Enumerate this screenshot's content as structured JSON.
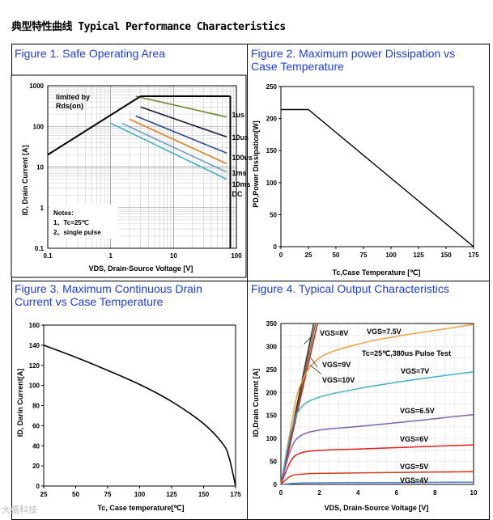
{
  "page_title": "典型特性曲线 Typical Performance Characteristics",
  "watermark": "大盛科技",
  "fig1": {
    "caption": "Figure 1. Safe Operating Area",
    "xlabel": "V<sub>DS</sub>, Drain-Source Voltage [V]",
    "xlabel_text": "VDS, Drain-Source Voltage [V]",
    "ylabel_text": "ID, Drain Current [A]",
    "xticks": [
      "0.1",
      "1",
      "10",
      "100"
    ],
    "yticks": [
      "1000",
      "100",
      "10",
      "1",
      "0.1"
    ],
    "limit_text_1": "limited by",
    "limit_text_2": "Rds(on)",
    "notes_title": "Notes:",
    "note_1": "1、Tc=25℃",
    "note_2": "2、single pulse",
    "curve_labels": [
      "1us",
      "10us",
      "100us",
      "1ms",
      "10ms",
      "DC"
    ]
  },
  "fig2": {
    "caption_1": "Figure 2. Maximum power Dissipation vs",
    "caption_2": "Case Temperature",
    "xlabel_text": "Tc,Case Temperature [℃]",
    "ylabel_text": "PD,Power Dissipation[W]",
    "xticks": [
      "0",
      "25",
      "50",
      "75",
      "100",
      "125",
      "150",
      "175"
    ],
    "yticks": [
      "0",
      "50",
      "100",
      "150",
      "200",
      "250"
    ]
  },
  "fig3": {
    "caption_1": "Figure 3. Maximum Continuous Drain",
    "caption_2": "Current vs Case Temperature",
    "xlabel_text": "Tc, Case temperature[℃]",
    "ylabel_text": "ID, Darin Current[A]",
    "xticks": [
      "25",
      "50",
      "75",
      "100",
      "125",
      "150",
      "175"
    ],
    "yticks": [
      "0",
      "20",
      "40",
      "60",
      "80",
      "100",
      "120",
      "140",
      "160"
    ]
  },
  "fig4": {
    "caption": "Figure 4. Typical Output Characteristics",
    "xlabel_text": "VDS, Drain-Source Voltage [V]",
    "ylabel_text": "ID,Drain Current [A]",
    "xticks": [
      "0",
      "2",
      "4",
      "6",
      "8",
      "10"
    ],
    "yticks": [
      "0",
      "50",
      "100",
      "150",
      "200",
      "250",
      "300",
      "350"
    ],
    "condition": "Tc=25℃,380us  Pulse Test",
    "curve_labels": [
      "VGS=8V",
      "VGS=7.5V",
      "VGS=9V",
      "VGS=10V",
      "VGS=7V",
      "VGS=6.5V",
      "VGS=6V",
      "VGS=5V",
      "VGS=4V"
    ]
  },
  "chart_data": [
    {
      "type": "line",
      "title": "Figure 1. Safe Operating Area",
      "xlabel": "VDS, Drain-Source Voltage [V]",
      "ylabel": "ID, Drain Current [A]",
      "xscale": "log",
      "yscale": "log",
      "xlim": [
        0.1,
        100
      ],
      "ylim": [
        0.1,
        1000
      ],
      "series": [
        {
          "name": "Rds(on) limit",
          "x": [
            0.1,
            3
          ],
          "y": [
            20,
            550
          ]
        },
        {
          "name": "1us",
          "x": [
            2.5,
            70
          ],
          "y": [
            550,
            170
          ]
        },
        {
          "name": "10us",
          "x": [
            3,
            70
          ],
          "y": [
            300,
            55
          ]
        },
        {
          "name": "100us",
          "x": [
            2.5,
            70
          ],
          "y": [
            180,
            22
          ]
        },
        {
          "name": "1ms",
          "x": [
            2,
            70
          ],
          "y": [
            150,
            12
          ]
        },
        {
          "name": "10ms",
          "x": [
            1.5,
            70
          ],
          "y": [
            120,
            7.5
          ]
        },
        {
          "name": "DC",
          "x": [
            1,
            70
          ],
          "y": [
            120,
            5
          ]
        }
      ],
      "vds_max": 80,
      "id_max": 550
    },
    {
      "type": "line",
      "title": "Figure 2. Maximum power Dissipation vs Case Temperature",
      "xlabel": "Tc,Case Temperature [℃]",
      "ylabel": "PD,Power Dissipation[W]",
      "xlim": [
        0,
        175
      ],
      "ylim": [
        0,
        250
      ],
      "series": [
        {
          "name": "PD",
          "x": [
            0,
            25,
            175
          ],
          "y": [
            214,
            214,
            0
          ]
        }
      ]
    },
    {
      "type": "line",
      "title": "Figure 3. Maximum Continuous Drain Current vs Case Temperature",
      "xlabel": "Tc, Case temperature[℃]",
      "ylabel": "ID, Darin Current[A]",
      "xlim": [
        25,
        175
      ],
      "ylim": [
        0,
        160
      ],
      "series": [
        {
          "name": "ID",
          "x": [
            25,
            50,
            75,
            100,
            125,
            150,
            165,
            170,
            175
          ],
          "y": [
            140,
            128,
            115,
            101,
            84,
            62,
            42,
            28,
            0
          ]
        }
      ]
    },
    {
      "type": "line",
      "title": "Figure 4. Typical Output Characteristics",
      "xlabel": "VDS, Drain-Source Voltage [V]",
      "ylabel": "ID,Drain Current [A]",
      "xlim": [
        0,
        10
      ],
      "ylim": [
        0,
        350
      ],
      "series": [
        {
          "name": "VGS=10V",
          "x": [
            0,
            1.7
          ],
          "y": [
            0,
            350
          ]
        },
        {
          "name": "VGS=9V",
          "x": [
            0,
            1.8
          ],
          "y": [
            0,
            350
          ]
        },
        {
          "name": "VGS=8V",
          "x": [
            0,
            1.9
          ],
          "y": [
            0,
            350
          ]
        },
        {
          "name": "VGS=7.5V",
          "x": [
            0,
            0.5,
            1,
            2,
            4,
            6,
            8,
            10
          ],
          "y": [
            0,
            120,
            215,
            275,
            305,
            322,
            335,
            348
          ]
        },
        {
          "name": "VGS=7V",
          "x": [
            0,
            0.5,
            1,
            2,
            4,
            6,
            8,
            10
          ],
          "y": [
            0,
            110,
            165,
            190,
            208,
            222,
            234,
            245
          ]
        },
        {
          "name": "VGS=6.5V",
          "x": [
            0,
            0.5,
            1,
            2,
            4,
            6,
            8,
            10
          ],
          "y": [
            0,
            75,
            105,
            118,
            126,
            134,
            143,
            152
          ]
        },
        {
          "name": "VGS=6V",
          "x": [
            0,
            0.5,
            1,
            2,
            4,
            6,
            8,
            10
          ],
          "y": [
            0,
            50,
            68,
            74,
            77,
            80,
            83,
            86
          ]
        },
        {
          "name": "VGS=5V",
          "x": [
            0,
            0.5,
            1,
            2,
            4,
            6,
            8,
            10
          ],
          "y": [
            0,
            18,
            22,
            24,
            25,
            26,
            27,
            28
          ]
        },
        {
          "name": "VGS=4V",
          "x": [
            0,
            1,
            2,
            4,
            6,
            8,
            10
          ],
          "y": [
            0,
            3,
            3.5,
            4,
            4,
            4.5,
            5
          ]
        }
      ]
    }
  ]
}
